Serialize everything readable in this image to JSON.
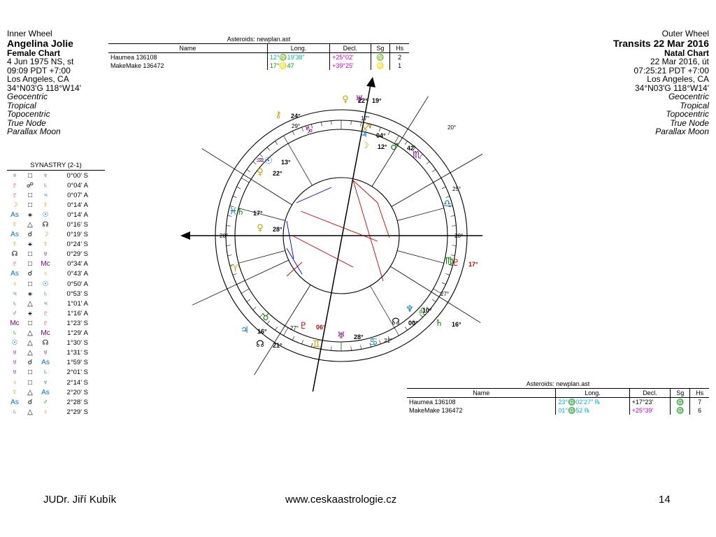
{
  "inner": {
    "label": "Inner Wheel",
    "name": "Angelina Jolie",
    "chart": "Female Chart",
    "date": "4 Jun 1975 NS, st",
    "time": "09:09  PDT +7:00",
    "place": "Los Angeles, CA",
    "coords": "34°N03'G 118°W14'",
    "opts": [
      "Geocentric",
      "Tropical",
      "Topocentric",
      "True Node",
      "Parallax Moon"
    ]
  },
  "outer": {
    "label": "Outer Wheel",
    "name": "Transits 22 Mar 2016",
    "chart": "Natal Chart",
    "date": "22 Mar 2016, út",
    "time": "07:25:21  PDT +7:00",
    "place": "Los Angeles, CA",
    "coords": "34°N03'G 118°W14'",
    "opts": [
      "Geocentric",
      "Tropical",
      "Topocentric",
      "True Node",
      "Parallax Moon"
    ]
  },
  "asteroids_top": {
    "caption": "Asteroids: newplan.ast",
    "headers": [
      "Name",
      "Long.",
      "Decl.",
      "Sg",
      "Hs"
    ],
    "rows": [
      {
        "name": "Haumea 136108",
        "long": "12°♍19'38\"",
        "decl": "+25°02'",
        "sg": "♍",
        "hs": "2"
      },
      {
        "name": "MakeMake 136472",
        "long": "17°♌47",
        "decl": "+39°25'",
        "sg": "♌",
        "hs": "1"
      }
    ]
  },
  "asteroids_bottom": {
    "caption": "Asteroids: newplan.ast",
    "headers": [
      "Name",
      "Long.",
      "Decl.",
      "Sg",
      "Hs"
    ],
    "rows": [
      {
        "name": "Haumea 136108",
        "long": "23°♎02'27\" ℞",
        "decl": "+17°23'",
        "sg": "♎",
        "hs": "7"
      },
      {
        "name": "MakeMake 136472",
        "long": "01°♎52 ℞",
        "decl": "+25°39'",
        "sg": "♎",
        "hs": "6"
      }
    ]
  },
  "synastry": {
    "title": "SYNASTRY (2-1)",
    "rows": [
      {
        "p1": "♆",
        "asp": "□",
        "p2": "♆",
        "val": "0°00' S",
        "c1": "#0070c0",
        "c2": "#0070c0"
      },
      {
        "p1": "♇",
        "asp": "☍",
        "p2": "♄",
        "val": "0°04' A",
        "c1": "#c00000",
        "c2": "#008000"
      },
      {
        "p1": "♇",
        "asp": "□",
        "p2": "♃",
        "val": "0°07' A",
        "c1": "#c00000",
        "c2": "#0070c0"
      },
      {
        "p1": "☽",
        "asp": "□",
        "p2": "☿",
        "val": "0°14' A",
        "c1": "#c89b00",
        "c2": "#c89b00"
      },
      {
        "p1": "As",
        "asp": "⚹",
        "p2": "☉",
        "val": "0°14' A",
        "c1": "#0070c0",
        "c2": "#0070c0"
      },
      {
        "p1": "☿",
        "asp": "△",
        "p2": "☊",
        "val": "0°16' S",
        "c1": "#c89b00",
        "c2": "#000"
      },
      {
        "p1": "As",
        "asp": "☌",
        "p2": "☽",
        "val": "0°19' S",
        "c1": "#0070c0",
        "c2": "#c89b00"
      },
      {
        "p1": "☿",
        "asp": "⚹",
        "p2": "☿",
        "val": "0°24' S",
        "c1": "#c89b00",
        "c2": "#c89b00"
      },
      {
        "p1": "☊",
        "asp": "□",
        "p2": "♅",
        "val": "0°29' S",
        "c1": "#000",
        "c2": "#800080"
      },
      {
        "p1": "♇",
        "asp": "□",
        "p2": "Mc",
        "val": "0°34' A",
        "c1": "#c00000",
        "c2": "#800080"
      },
      {
        "p1": "As",
        "asp": "☌",
        "p2": "♀",
        "val": "0°43' A",
        "c1": "#0070c0",
        "c2": "#c89b00"
      },
      {
        "p1": "♀",
        "asp": "□",
        "p2": "☉",
        "val": "0°50' A",
        "c1": "#c89b00",
        "c2": "#0070c0"
      },
      {
        "p1": "♃",
        "asp": "⚹",
        "p2": "♄",
        "val": "0°53' S",
        "c1": "#0070c0",
        "c2": "#008000"
      },
      {
        "p1": "♄",
        "asp": "△",
        "p2": "♃",
        "val": "1°01' A",
        "c1": "#008000",
        "c2": "#0070c0"
      },
      {
        "p1": "♂",
        "asp": "⚹",
        "p2": "♇",
        "val": "1°16' A",
        "c1": "#008000",
        "c2": "#c00000"
      },
      {
        "p1": "Mc",
        "asp": "□",
        "p2": "♇",
        "val": "1°23' S",
        "c1": "#800080",
        "c2": "#c00000"
      },
      {
        "p1": "♄",
        "asp": "△",
        "p2": "Mc",
        "val": "1°29' A",
        "c1": "#008000",
        "c2": "#800080"
      },
      {
        "p1": "☉",
        "asp": "△",
        "p2": "☊",
        "val": "1°30' S",
        "c1": "#0070c0",
        "c2": "#000"
      },
      {
        "p1": "♅",
        "asp": "△",
        "p2": "♅",
        "val": "1°31' S",
        "c1": "#800080",
        "c2": "#800080"
      },
      {
        "p1": "♅",
        "asp": "☌",
        "p2": "As",
        "val": "1°59' S",
        "c1": "#800080",
        "c2": "#0070c0"
      },
      {
        "p1": "♅",
        "asp": "□",
        "p2": "♄",
        "val": "2°01' S",
        "c1": "#800080",
        "c2": "#008000"
      },
      {
        "p1": "♀",
        "asp": "□",
        "p2": "♆",
        "val": "2°14' S",
        "c1": "#c89b00",
        "c2": "#0070c0"
      },
      {
        "p1": "☿",
        "asp": "△",
        "p2": "As",
        "val": "2°20' S",
        "c1": "#c89b00",
        "c2": "#0070c0"
      },
      {
        "p1": "As",
        "asp": "☌",
        "p2": "♂",
        "val": "2°28' S",
        "c1": "#0070c0",
        "c2": "#008000"
      },
      {
        "p1": "♄",
        "asp": "△",
        "p2": "♀",
        "val": "2°29' S",
        "c1": "#008000",
        "c2": "#c89b00"
      }
    ]
  },
  "wheel": {
    "asc_label": "28°",
    "desc_label": "28°",
    "house_cusps": [
      "29°",
      "17°",
      "20°",
      "25°",
      "27°",
      "21°",
      "27°"
    ],
    "signs": [
      {
        "g": "♈",
        "c": "#c89b00"
      },
      {
        "g": "♉",
        "c": "#008000"
      },
      {
        "g": "♊",
        "c": "#c89b00"
      },
      {
        "g": "♋",
        "c": "#0070c0"
      },
      {
        "g": "♌",
        "c": "#008000"
      },
      {
        "g": "♍",
        "c": "#008000"
      },
      {
        "g": "♎",
        "c": "#0070c0"
      },
      {
        "g": "♏",
        "c": "#800080"
      },
      {
        "g": "♐",
        "c": "#c89b00"
      },
      {
        "g": "♑",
        "c": "#800080"
      },
      {
        "g": "♒",
        "c": "#800080"
      },
      {
        "g": "♓",
        "c": "#0070c0"
      }
    ],
    "planets": [
      {
        "g": "♀",
        "deg": "22°",
        "c": "#c89b00"
      },
      {
        "g": "♅",
        "deg": "19°",
        "c": "#800080"
      },
      {
        "g": "⚷",
        "deg": "24°",
        "c": "#c89b00"
      },
      {
        "g": "☉",
        "deg": "13°",
        "c": "#0070c0"
      },
      {
        "g": "♀",
        "deg": "22°",
        "c": "#c89b00"
      },
      {
        "g": "♄",
        "deg": "17°",
        "c": "#008000"
      },
      {
        "g": "♀",
        "deg": "28°",
        "c": "#c89b00"
      },
      {
        "g": "♇",
        "deg": "17°",
        "c": "#c00000"
      },
      {
        "g": "♆",
        "deg": "10°",
        "c": "#0070c0"
      },
      {
        "g": "☊",
        "deg": "00°",
        "c": "#000"
      },
      {
        "g": "♃",
        "deg": "16°",
        "c": "#0070c0"
      },
      {
        "g": "♇",
        "deg": "06°",
        "c": "#c00000"
      },
      {
        "g": "♅",
        "deg": "28°",
        "c": "#800080"
      },
      {
        "g": "☊",
        "deg": "21°",
        "c": "#000"
      },
      {
        "g": "♄",
        "deg": "16°",
        "c": "#008000"
      },
      {
        "g": "♂",
        "deg": "42'",
        "c": "#008000"
      },
      {
        "g": "☽",
        "deg": "12°",
        "c": "#c89b00"
      },
      {
        "g": "♃",
        "deg": "04°",
        "c": "#0070c0"
      }
    ]
  },
  "footer": {
    "left": "JUDr. Jiří Kubík",
    "center": "www.ceskaastrologie.cz",
    "right": "14"
  }
}
